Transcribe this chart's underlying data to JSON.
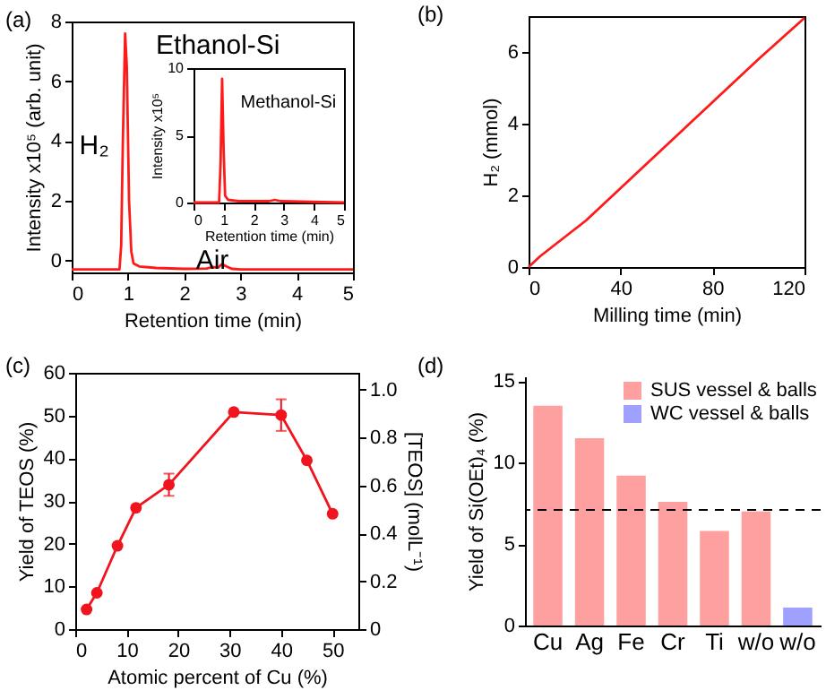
{
  "chart_data": [
    {
      "type": "line",
      "title": "(a)",
      "xlabel": "Retention time (min)",
      "ylabel": "Intensity x10⁵ (arb. unit)",
      "xlim": [
        0,
        5
      ],
      "xticks": [
        0,
        1,
        2,
        3,
        4,
        5
      ],
      "ylim": [
        -0.4,
        8
      ],
      "yticks": [
        0,
        2,
        4,
        6,
        8
      ],
      "grid": false,
      "series": [
        {
          "color": "#ff1a1a",
          "x": [
            0,
            0.5,
            0.85,
            0.88,
            0.91,
            0.95,
            0.98,
            1.02,
            1.06,
            1.1,
            1.2,
            1.5,
            2.0,
            2.4,
            2.5,
            2.6,
            2.67,
            2.75,
            2.85,
            3.0,
            4.0,
            5.0
          ],
          "values": [
            -0.3,
            -0.3,
            -0.3,
            0.5,
            4,
            7.6,
            6.5,
            2,
            0.3,
            -0.1,
            -0.2,
            -0.25,
            -0.28,
            -0.27,
            -0.22,
            -0.24,
            -0.12,
            -0.2,
            -0.28,
            -0.3,
            -0.3,
            -0.3
          ]
        }
      ],
      "annotations": [
        "Ethanol-Si",
        "H₂",
        "Air"
      ]
    },
    {
      "type": "line",
      "xlabel": "Retention time (min)",
      "ylabel": "Intensity x10⁵",
      "xlim": [
        0,
        5
      ],
      "xticks": [
        0,
        1,
        2,
        3,
        4,
        5
      ],
      "ylim": [
        0,
        10
      ],
      "yticks": [
        0,
        5,
        10
      ],
      "grid": false,
      "series": [
        {
          "color": "#ff1a1a",
          "x": [
            0,
            0.85,
            0.9,
            0.95,
            1.0,
            1.05,
            1.15,
            1.5,
            2.5,
            2.7,
            2.9,
            5
          ],
          "values": [
            0,
            0,
            3,
            9.2,
            4,
            0.5,
            0.2,
            0.1,
            0.1,
            0.2,
            0.1,
            0
          ]
        }
      ],
      "annotations": [
        "Methanol-Si"
      ]
    },
    {
      "type": "line",
      "title": "(b)",
      "xlabel": "Milling time (min)",
      "ylabel": "H₂ (mmol)",
      "xlim": [
        0,
        120
      ],
      "xticks": [
        0,
        40,
        80,
        120
      ],
      "ylim": [
        0,
        7
      ],
      "yticks": [
        0,
        2,
        4,
        6
      ],
      "grid": false,
      "series": [
        {
          "color": "#ff1a1a",
          "x": [
            0,
            5,
            10,
            15,
            20,
            25,
            30,
            40,
            60,
            80,
            100,
            120
          ],
          "values": [
            0,
            0.3,
            0.55,
            0.8,
            1.05,
            1.3,
            1.6,
            2.2,
            3.4,
            4.6,
            5.8,
            6.95
          ]
        }
      ]
    },
    {
      "type": "line",
      "title": "(c)",
      "xlabel": "Atomic percent of Cu (%)",
      "ylabel": "Yield of TEOS (%)",
      "y2label": "[TEOS] (molL⁻¹)",
      "xlim": [
        0,
        55
      ],
      "xticks": [
        0,
        10,
        20,
        30,
        40,
        50
      ],
      "ylim": [
        0,
        60
      ],
      "yticks": [
        0,
        10,
        20,
        30,
        40,
        50,
        60
      ],
      "y2lim": [
        0,
        1.07
      ],
      "y2ticks": [
        {
          "value": 0,
          "label": "0"
        },
        0.2,
        0.4,
        0.6,
        0.8,
        {
          "value": 1,
          "label": "1.0"
        }
      ],
      "grid": false,
      "marker": "circle",
      "series": [
        {
          "color": "#f0141e",
          "x": [
            2.2,
            4.2,
            8.2,
            11.8,
            18.2,
            30.8,
            40,
            45,
            50
          ],
          "values": [
            4.6,
            8.5,
            19.5,
            28.4,
            33.8,
            50.8,
            50.1,
            39.5,
            27
          ],
          "errors": [
            null,
            null,
            null,
            null,
            2.6,
            null,
            3.7,
            null,
            null
          ]
        }
      ]
    },
    {
      "type": "bar",
      "title": "(d)",
      "ylabel": "Yield of Si(OEt)₄ (%)",
      "categories": [
        "Cu",
        "Ag",
        "Fe",
        "Cr",
        "Ti",
        "w/o",
        "w/o"
      ],
      "ylim": [
        0,
        15.3
      ],
      "yticks": [
        0,
        5,
        10,
        15
      ],
      "grid": false,
      "legend": "top right",
      "series": [
        {
          "name": "SUS vessel & balls",
          "color": "#ffa0a0",
          "values": [
            13.5,
            11.5,
            9.2,
            7.6,
            5.8,
            7.0,
            null
          ]
        },
        {
          "name": "WC vessel & balls",
          "color": "#a0a0ff",
          "values": [
            null,
            null,
            null,
            null,
            null,
            null,
            1.1
          ]
        }
      ],
      "ref_lines": [
        {
          "axis": "y",
          "value": 7.1,
          "color": "#000000",
          "line_style": "dashed"
        }
      ]
    }
  ]
}
